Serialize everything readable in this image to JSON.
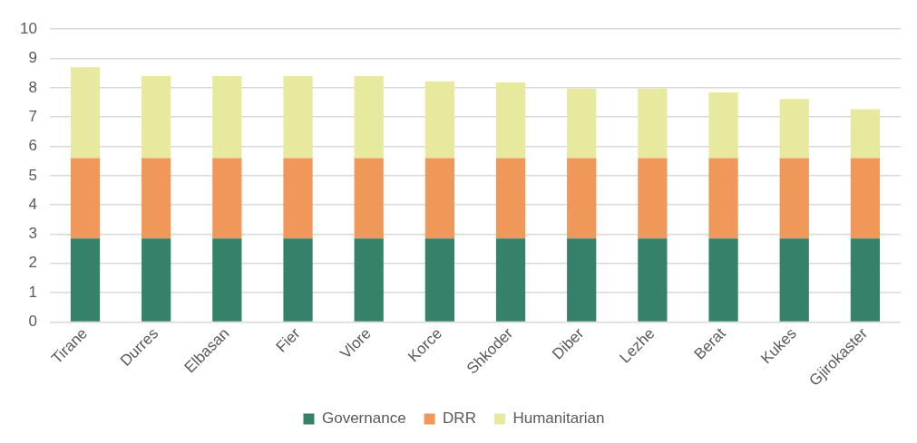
{
  "chart_data": {
    "type": "bar",
    "stacked": true,
    "categories": [
      "Tirane",
      "Durres",
      "Elbasan",
      "Fier",
      "Vlore",
      "Korce",
      "Shkoder",
      "Diber",
      "Lezhe",
      "Berat",
      "Kukes",
      "Gjirokaster"
    ],
    "series": [
      {
        "name": "Governance",
        "color": "#358169",
        "values": [
          2.85,
          2.85,
          2.85,
          2.85,
          2.85,
          2.85,
          2.85,
          2.85,
          2.85,
          2.85,
          2.85,
          2.85
        ]
      },
      {
        "name": "DRR",
        "color": "#f0975a",
        "values": [
          2.75,
          2.75,
          2.75,
          2.75,
          2.75,
          2.75,
          2.75,
          2.75,
          2.75,
          2.75,
          2.75,
          2.75
        ]
      },
      {
        "name": "Humanitarian",
        "color": "#e7ea9e",
        "values": [
          3.1,
          2.8,
          2.8,
          2.8,
          2.8,
          2.62,
          2.58,
          2.37,
          2.37,
          2.24,
          2.02,
          1.67
        ]
      }
    ],
    "ylim": [
      0,
      10
    ],
    "yticks": [
      0,
      1,
      2,
      3,
      4,
      5,
      6,
      7,
      8,
      9,
      10
    ],
    "grid": "y",
    "legend": "bottom"
  }
}
